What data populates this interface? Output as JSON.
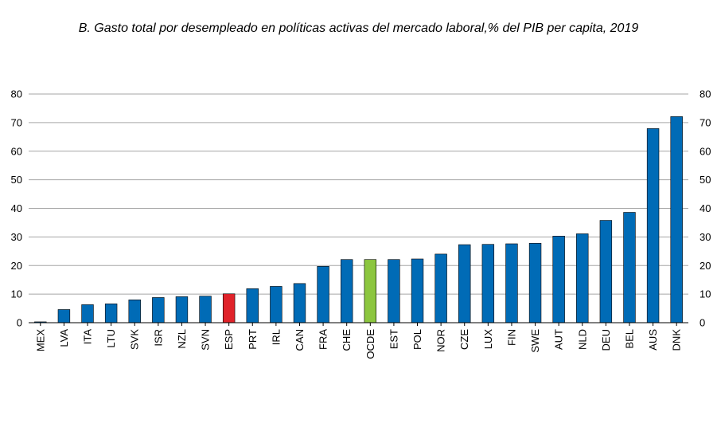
{
  "chart_data": {
    "type": "bar",
    "title": "B. Gasto total por desempleado en políticas activas del mercado laboral,% del PIB per capita, 2019",
    "xlabel": "",
    "ylabel": "",
    "ylim": [
      0,
      80
    ],
    "yticks": [
      0,
      10,
      20,
      30,
      40,
      50,
      60,
      70,
      80
    ],
    "grid": true,
    "secondary_axis": true,
    "categories": [
      "MEX",
      "LVA",
      "ITA",
      "LTU",
      "SVK",
      "ISR",
      "NZL",
      "SVN",
      "ESP",
      "PRT",
      "IRL",
      "CAN",
      "FRA",
      "CHE",
      "OCDE",
      "EST",
      "POL",
      "NOR",
      "CZE",
      "LUX",
      "FIN",
      "SWE",
      "AUT",
      "NLD",
      "DEU",
      "BEL",
      "AUS",
      "DNK"
    ],
    "values": [
      0.3,
      4.6,
      6.3,
      6.6,
      8.0,
      8.8,
      9.1,
      9.3,
      10.1,
      11.9,
      12.7,
      13.7,
      19.7,
      22.1,
      22.1,
      22.1,
      22.3,
      24.0,
      27.3,
      27.4,
      27.6,
      27.8,
      30.3,
      31.1,
      35.8,
      38.6,
      67.9,
      72.1
    ],
    "colors": {
      "default": "#006bb6",
      "highlight_esp": "#e0232a",
      "highlight_oecd": "#8cc63f",
      "grid": "#a6a6a6",
      "axis": "#000000"
    },
    "highlights": {
      "ESP": "highlight_esp",
      "OCDE": "highlight_oecd"
    }
  }
}
